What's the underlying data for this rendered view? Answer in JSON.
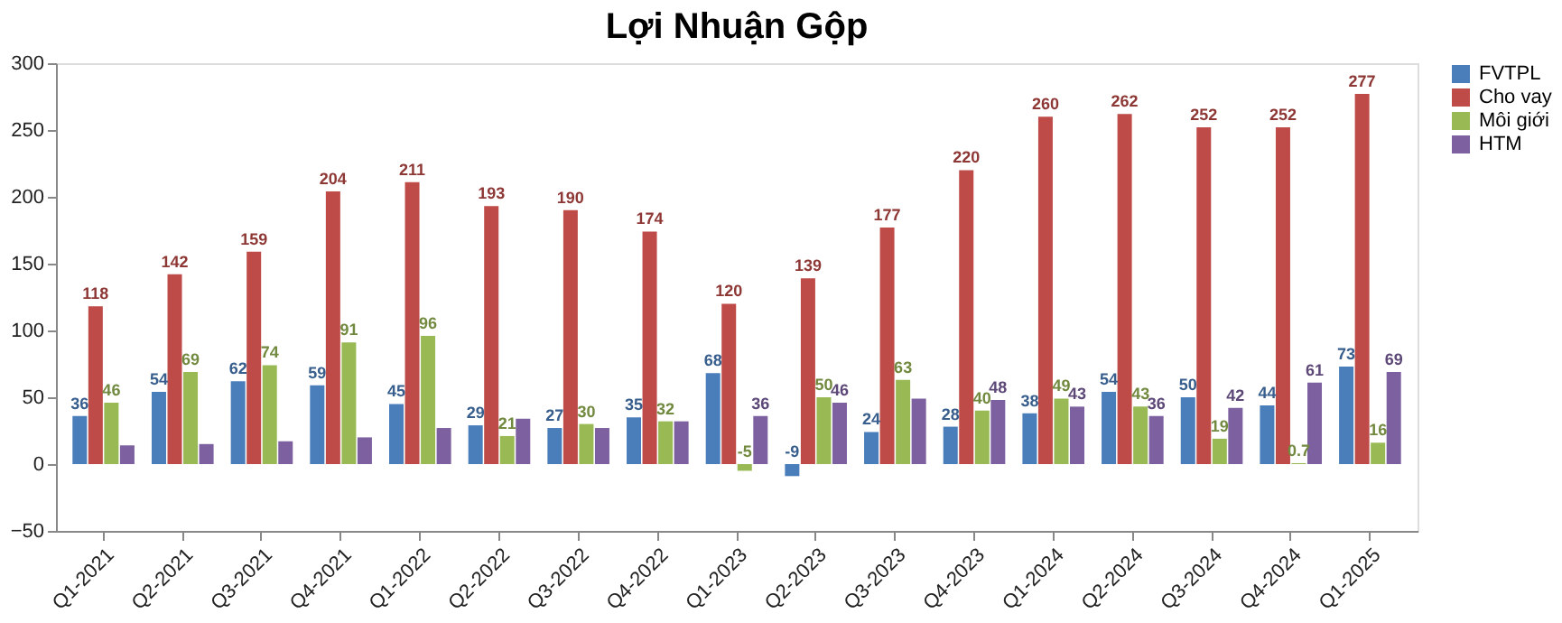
{
  "chart_data": {
    "type": "bar",
    "title": "Lợi Nhuận Gộp",
    "categories": [
      "Q1-2021",
      "Q2-2021",
      "Q3-2021",
      "Q4-2021",
      "Q1-2022",
      "Q2-2022",
      "Q3-2022",
      "Q4-2022",
      "Q1-2023",
      "Q2-2023",
      "Q3-2023",
      "Q4-2023",
      "Q1-2024",
      "Q2-2024",
      "Q3-2024",
      "Q4-2024",
      "Q1-2025"
    ],
    "series": [
      {
        "name": "FVTPL",
        "color": "#4a7ebb",
        "values": [
          36,
          54,
          62,
          59,
          45,
          29,
          27,
          35,
          68,
          -9,
          24,
          28,
          38,
          54,
          50,
          44,
          73
        ],
        "value_labels": [
          "36",
          "54",
          "62",
          "59",
          "45",
          "29",
          "27",
          "35",
          "68",
          "-9",
          "24",
          "28",
          "38",
          "54",
          "50",
          "44",
          "73"
        ]
      },
      {
        "name": "Cho vay",
        "color": "#be4b48",
        "values": [
          118,
          142,
          159,
          204,
          211,
          193,
          190,
          174,
          120,
          139,
          177,
          220,
          260,
          262,
          252,
          252,
          277
        ],
        "value_labels": [
          "118",
          "142",
          "159",
          "204",
          "211",
          "193",
          "190",
          "174",
          "120",
          "139",
          "177",
          "220",
          "260",
          "262",
          "252",
          "252",
          "277"
        ]
      },
      {
        "name": "Môi giới",
        "color": "#98b954",
        "values": [
          46,
          69,
          74,
          91,
          96,
          21,
          30,
          32,
          -5,
          50,
          63,
          40,
          49,
          43,
          19,
          0.7,
          16
        ],
        "value_labels": [
          "46",
          "69",
          "74",
          "91",
          "96",
          "21",
          "30",
          "32",
          "-5",
          "50",
          "63",
          "40",
          "49",
          "43",
          "19",
          "0.7",
          "16"
        ]
      },
      {
        "name": "HTM",
        "color": "#7d60a0",
        "values": [
          14,
          15,
          17,
          20,
          27,
          34,
          27,
          32,
          36,
          46,
          49,
          48,
          43,
          36,
          42,
          61,
          69
        ],
        "value_labels": [
          null,
          null,
          null,
          null,
          null,
          null,
          null,
          null,
          "36",
          "46",
          null,
          "48",
          "43",
          "36",
          "42",
          "61",
          "69"
        ]
      }
    ],
    "ylim": [
      -50,
      300
    ],
    "yticks": [
      -50,
      0,
      50,
      100,
      150,
      200,
      250,
      300
    ],
    "grid": false,
    "legend": "right"
  }
}
